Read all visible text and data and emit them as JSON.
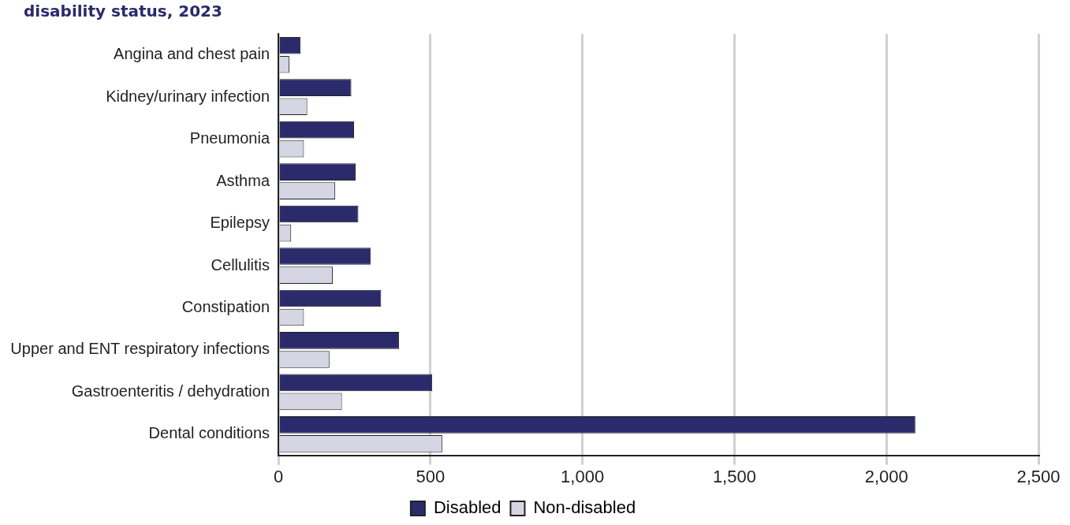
{
  "chart_data": {
    "type": "bar",
    "orientation": "horizontal",
    "title": "disability status, 2023",
    "categories": [
      "Angina and chest pain",
      "Kidney/urinary infection",
      "Pneumonia",
      "Asthma",
      "Epilepsy",
      "Cellulitis",
      "Constipation",
      "Upper and ENT respiratory infections",
      "Gastroenteritis / dehydration",
      "Dental conditions"
    ],
    "series": [
      {
        "name": "Disabled",
        "color": "#2b2a6b",
        "values": [
          73,
          240,
          249,
          254,
          263,
          304,
          338,
          397,
          506,
          2095
        ]
      },
      {
        "name": "Non-disabled",
        "color": "#d6d5e3",
        "values": [
          36,
          95,
          84,
          187,
          42,
          179,
          84,
          168,
          209,
          539
        ]
      }
    ],
    "xlim": [
      0,
      2500
    ],
    "xticks": [
      {
        "value": 0,
        "label": "0"
      },
      {
        "value": 500,
        "label": "500"
      },
      {
        "value": 1000,
        "label": "1,000"
      },
      {
        "value": 1500,
        "label": "1,500"
      },
      {
        "value": 2000,
        "label": "2,000"
      },
      {
        "value": 2500,
        "label": "2,500"
      }
    ],
    "grid": "x",
    "legend": "bottom"
  }
}
